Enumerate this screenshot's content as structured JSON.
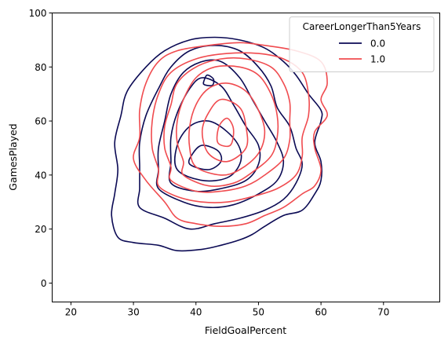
{
  "chart_data": {
    "type": "kde-contour",
    "xlabel": "FieldGoalPercent",
    "ylabel": "GamesPlayed",
    "xlim": [
      17,
      79
    ],
    "ylim": [
      -7,
      100
    ],
    "xticks": [
      20,
      30,
      40,
      50,
      60,
      70
    ],
    "yticks": [
      0,
      20,
      40,
      60,
      80,
      100
    ],
    "grid": false,
    "legend": {
      "title": "CareerLongerThan5Years",
      "placement": "top-right"
    },
    "series": [
      {
        "name": "0.0",
        "color": "#0b0a54",
        "contours": [
          [
            [
              27.5,
              17
            ],
            [
              30,
              15
            ],
            [
              34,
              14
            ],
            [
              37,
              12
            ],
            [
              41,
              12.5
            ],
            [
              44,
              14
            ],
            [
              47,
              16
            ],
            [
              49,
              18
            ],
            [
              51,
              21
            ],
            [
              54,
              25
            ],
            [
              57,
              27
            ],
            [
              59,
              33
            ],
            [
              60,
              38
            ],
            [
              60,
              45
            ],
            [
              59,
              52
            ],
            [
              60,
              60
            ],
            [
              60,
              64
            ],
            [
              58,
              70
            ],
            [
              56,
              77
            ],
            [
              54,
              82
            ],
            [
              51,
              87
            ],
            [
              47,
              90
            ],
            [
              43,
              91
            ],
            [
              39,
              90
            ],
            [
              35,
              86
            ],
            [
              32,
              80
            ],
            [
              29,
              71
            ],
            [
              28,
              62
            ],
            [
              27,
              52
            ],
            [
              27.5,
              42
            ],
            [
              27,
              33
            ],
            [
              26.5,
              25
            ],
            [
              27.5,
              17
            ]
          ],
          [
            [
              31,
              28
            ],
            [
              35,
              24
            ],
            [
              39,
              20
            ],
            [
              43,
              22
            ],
            [
              47,
              24
            ],
            [
              51,
              27
            ],
            [
              54,
              31
            ],
            [
              56,
              37
            ],
            [
              57,
              44
            ],
            [
              56,
              50
            ],
            [
              55,
              58
            ],
            [
              53,
              65
            ],
            [
              52,
              73
            ],
            [
              50,
              80
            ],
            [
              47,
              86
            ],
            [
              43,
              88
            ],
            [
              39,
              86
            ],
            [
              36,
              80
            ],
            [
              34,
              72
            ],
            [
              32,
              62
            ],
            [
              31,
              52
            ],
            [
              31,
              43
            ],
            [
              31,
              35
            ],
            [
              31,
              28
            ]
          ],
          [
            [
              34,
              35
            ],
            [
              38,
              30
            ],
            [
              42,
              28
            ],
            [
              46,
              29
            ],
            [
              50,
              33
            ],
            [
              53,
              38
            ],
            [
              54,
              45
            ],
            [
              53,
              52
            ],
            [
              51,
              60
            ],
            [
              49,
              68
            ],
            [
              47,
              76
            ],
            [
              44,
              82
            ],
            [
              41,
              82
            ],
            [
              38,
              78
            ],
            [
              36,
              70
            ],
            [
              35,
              60
            ],
            [
              34,
              50
            ],
            [
              34,
              42
            ],
            [
              34,
              35
            ]
          ],
          [
            [
              36,
              37
            ],
            [
              40,
              34
            ],
            [
              44,
              35
            ],
            [
              48,
              38
            ],
            [
              50,
              44
            ],
            [
              50,
              51
            ],
            [
              48,
              58
            ],
            [
              46,
              66
            ],
            [
              44,
              73
            ],
            [
              41,
              76
            ],
            [
              39,
              72
            ],
            [
              37,
              63
            ],
            [
              36,
              54
            ],
            [
              36,
              45
            ],
            [
              36,
              37
            ]
          ],
          [
            [
              37,
              42
            ],
            [
              41,
              38
            ],
            [
              45,
              39
            ],
            [
              47,
              44
            ],
            [
              47,
              50
            ],
            [
              45,
              56
            ],
            [
              42,
              60
            ],
            [
              39,
              58
            ],
            [
              37,
              51
            ],
            [
              37,
              42
            ]
          ],
          [
            [
              39,
              44
            ],
            [
              42,
              42
            ],
            [
              44,
              45
            ],
            [
              43.5,
              49
            ],
            [
              41,
              51
            ],
            [
              39.5,
              48
            ],
            [
              39,
              44
            ]
          ],
          [
            [
              41.3,
              73.5
            ],
            [
              42.6,
              73.2
            ],
            [
              42.8,
              75.5
            ],
            [
              41.8,
              77
            ],
            [
              41.3,
              75
            ],
            [
              41.3,
              73.5
            ]
          ]
        ]
      },
      {
        "name": "1.0",
        "color": "#f04b4f",
        "contours": [
          [
            [
              32,
              38
            ],
            [
              35,
              30
            ],
            [
              37,
              24
            ],
            [
              40,
              22
            ],
            [
              44,
              21
            ],
            [
              48,
              22
            ],
            [
              51,
              25
            ],
            [
              54,
              28
            ],
            [
              57,
              33
            ],
            [
              59,
              36
            ],
            [
              60,
              42
            ],
            [
              59,
              50
            ],
            [
              59,
              56
            ],
            [
              61,
              62
            ],
            [
              60,
              68
            ],
            [
              61,
              74
            ],
            [
              60,
              82
            ],
            [
              56,
              86
            ],
            [
              51,
              88
            ],
            [
              47,
              89
            ],
            [
              42,
              88
            ],
            [
              37,
              86
            ],
            [
              34,
              82
            ],
            [
              32,
              74
            ],
            [
              31,
              64
            ],
            [
              31,
              54
            ],
            [
              30,
              46
            ],
            [
              32,
              38
            ]
          ],
          [
            [
              34,
              36
            ],
            [
              37,
              32
            ],
            [
              41,
              30
            ],
            [
              45,
              30
            ],
            [
              49,
              32
            ],
            [
              53,
              35
            ],
            [
              56,
              40
            ],
            [
              57,
              47
            ],
            [
              57,
              54
            ],
            [
              58,
              62
            ],
            [
              58,
              70
            ],
            [
              57,
              78
            ],
            [
              54,
              83
            ],
            [
              50,
              85
            ],
            [
              45,
              85
            ],
            [
              40,
              83
            ],
            [
              36,
              78
            ],
            [
              34,
              70
            ],
            [
              33,
              60
            ],
            [
              33,
              50
            ],
            [
              34,
              42
            ],
            [
              34,
              36
            ]
          ],
          [
            [
              36,
              38
            ],
            [
              40,
              34
            ],
            [
              44,
              34
            ],
            [
              48,
              36
            ],
            [
              51,
              40
            ],
            [
              54,
              46
            ],
            [
              55,
              53
            ],
            [
              55,
              60
            ],
            [
              55,
              67
            ],
            [
              54,
              74
            ],
            [
              52,
              80
            ],
            [
              48,
              83
            ],
            [
              44,
              83
            ],
            [
              40,
              80
            ],
            [
              37,
              74
            ],
            [
              36,
              66
            ],
            [
              35,
              58
            ],
            [
              35,
              50
            ],
            [
              36,
              43
            ],
            [
              36,
              38
            ]
          ],
          [
            [
              38,
              40
            ],
            [
              42,
              36
            ],
            [
              46,
              37
            ],
            [
              49,
              41
            ],
            [
              52,
              47
            ],
            [
              53,
              54
            ],
            [
              53,
              62
            ],
            [
              52,
              70
            ],
            [
              50,
              77
            ],
            [
              47,
              80
            ],
            [
              43,
              80
            ],
            [
              40,
              76
            ],
            [
              38,
              68
            ],
            [
              37,
              60
            ],
            [
              37,
              52
            ],
            [
              38,
              45
            ],
            [
              38,
              40
            ]
          ],
          [
            [
              40,
              43
            ],
            [
              44,
              40
            ],
            [
              47,
              42
            ],
            [
              50,
              48
            ],
            [
              51,
              56
            ],
            [
              50,
              64
            ],
            [
              48,
              71
            ],
            [
              45,
              74
            ],
            [
              42,
              72
            ],
            [
              40,
              66
            ],
            [
              39,
              58
            ],
            [
              39,
              50
            ],
            [
              40,
              43
            ]
          ],
          [
            [
              42,
              48
            ],
            [
              45,
              45
            ],
            [
              48,
              50
            ],
            [
              48,
              58
            ],
            [
              47,
              65
            ],
            [
              44,
              68
            ],
            [
              42,
              63
            ],
            [
              41,
              56
            ],
            [
              42,
              48
            ]
          ],
          [
            [
              43.5,
              52
            ],
            [
              45.5,
              51
            ],
            [
              46,
              57
            ],
            [
              45,
              61
            ],
            [
              43.7,
              58
            ],
            [
              43.5,
              52
            ]
          ]
        ]
      }
    ]
  }
}
